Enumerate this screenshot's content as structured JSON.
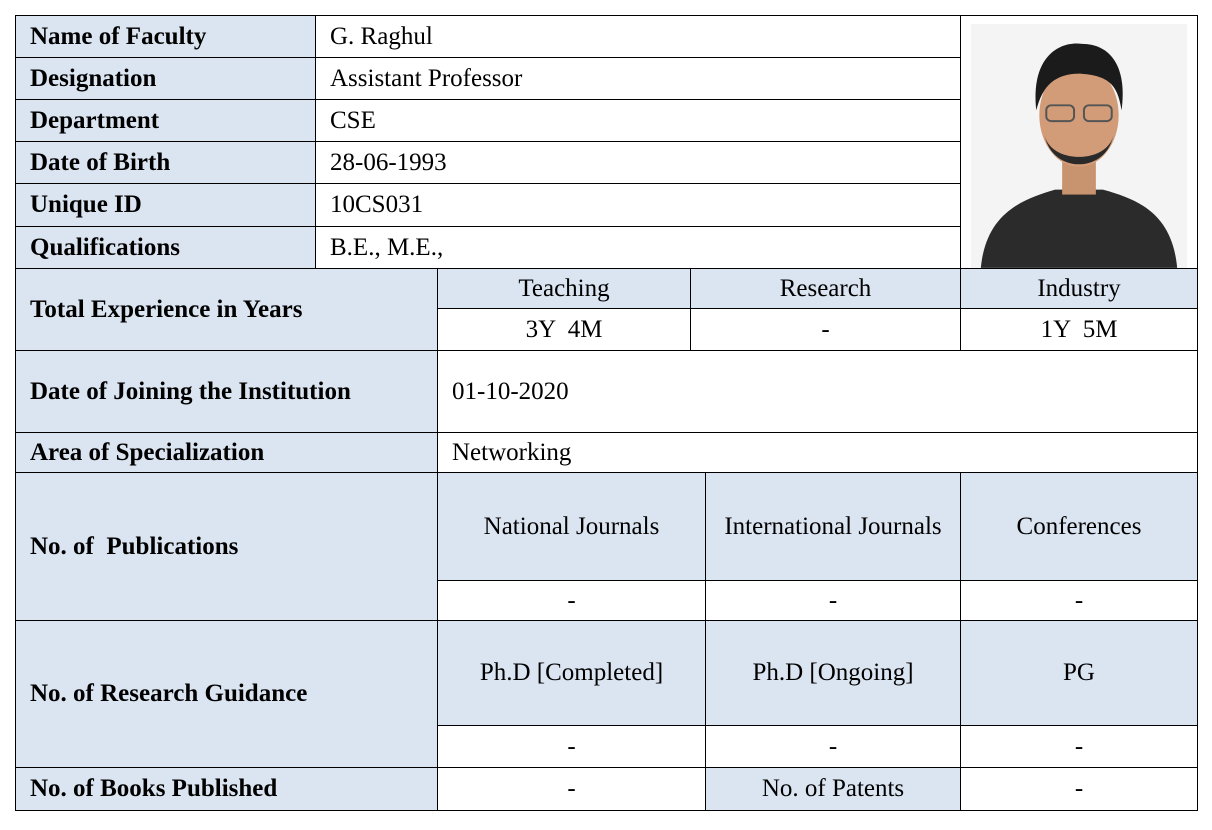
{
  "profile": {
    "rows": [
      [
        "Name of Faculty",
        "G. Raghul"
      ],
      [
        "Designation",
        "Assistant Professor"
      ],
      [
        "Department",
        "CSE"
      ],
      [
        "Date of Birth",
        "28-06-1993"
      ],
      [
        "Unique ID",
        "10CS031"
      ],
      [
        "Qualifications",
        "B.E., M.E.,"
      ]
    ]
  },
  "experience": {
    "label": "Total Experience in Years",
    "headers": [
      "Teaching",
      "Research",
      "Industry"
    ],
    "values": [
      "3Y  4M",
      "-",
      "1Y  5M"
    ]
  },
  "joining": {
    "label": "Date of Joining the Institution",
    "value": "01-10-2020"
  },
  "specialization": {
    "label": "Area of Specialization",
    "value": "Networking"
  },
  "publications": {
    "label": "No. of  Publications",
    "headers": [
      "National Journals",
      "International Journals",
      "Conferences"
    ],
    "values": [
      "-",
      "-",
      "-"
    ]
  },
  "research_guidance": {
    "label": "No. of Research Guidance",
    "headers": [
      "Ph.D [Completed]",
      "Ph.D [Ongoing]",
      "PG"
    ],
    "values": [
      "-",
      "-",
      "-"
    ]
  },
  "books": {
    "label": "No. of Books Published",
    "value": "-",
    "patents_label": "No. of Patents",
    "patents_value": "-"
  }
}
